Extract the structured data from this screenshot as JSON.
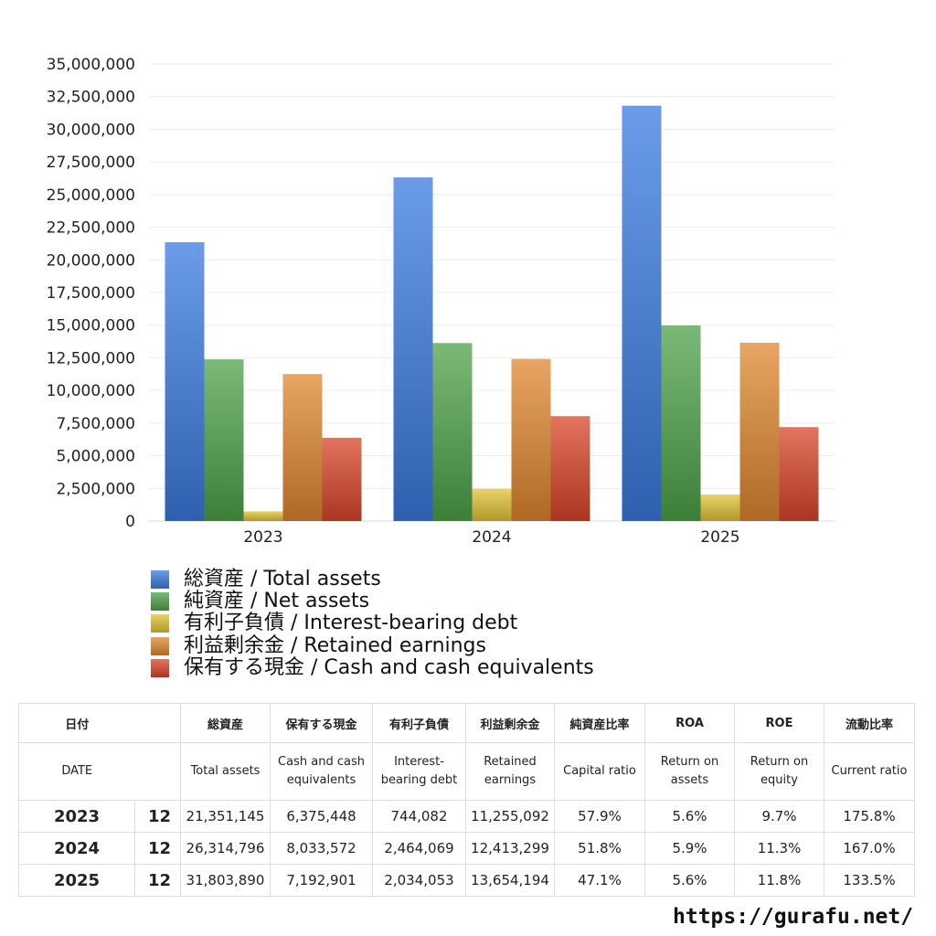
{
  "chart_data": {
    "type": "bar",
    "categories": [
      "2023",
      "2024",
      "2025"
    ],
    "series": [
      {
        "name": "総資産 / Total assets",
        "color": "#3b7be0",
        "values": [
          21351145,
          26314796,
          31803890
        ]
      },
      {
        "name": "純資産 / Net assets",
        "color": "#4ea348",
        "values": [
          12380000,
          13630000,
          14980000
        ]
      },
      {
        "name": "有利子負債 / Interest-bearing debt",
        "color": "#e2c336",
        "values": [
          744082,
          2464069,
          2034053
        ]
      },
      {
        "name": "利益剰余金 / Retained earnings",
        "color": "#e0872f",
        "values": [
          11255092,
          12413299,
          13654194
        ]
      },
      {
        "name": "保有する現金 /  Cash and cash equivalents",
        "color": "#d9452a",
        "values": [
          6375448,
          8033572,
          7192901
        ]
      }
    ],
    "ylim": [
      0,
      35000000
    ],
    "yticks": [
      0,
      2500000,
      5000000,
      7500000,
      10000000,
      12500000,
      15000000,
      17500000,
      20000000,
      22500000,
      25000000,
      27500000,
      30000000,
      32500000,
      35000000
    ],
    "ytick_labels": [
      "0",
      "2,500,000",
      "5,000,000",
      "7,500,000",
      "10,000,000",
      "12,500,000",
      "15,000,000",
      "17,500,000",
      "20,000,000",
      "22,500,000",
      "25,000,000",
      "27,500,000",
      "30,000,000",
      "32,500,000",
      "35,000,000"
    ],
    "grid": true,
    "legend": "bottom"
  },
  "table": {
    "headers_ja": [
      "日付",
      "",
      "総資産",
      "保有する現金",
      "有利子負債",
      "利益剰余金",
      "純資産比率",
      "ROA",
      "ROE",
      "流動比率"
    ],
    "headers_en": [
      "DATE",
      "",
      "Total assets",
      "Cash and cash equivalents",
      "Interest-bearing debt",
      "Retained earnings",
      "Capital ratio",
      "Return on assets",
      "Return on equity",
      "Current ratio"
    ],
    "rows": [
      [
        "2023",
        "12",
        "21,351,145",
        "6,375,448",
        "744,082",
        "11,255,092",
        "57.9%",
        "5.6%",
        "9.7%",
        "175.8%"
      ],
      [
        "2024",
        "12",
        "26,314,796",
        "8,033,572",
        "2,464,069",
        "12,413,299",
        "51.8%",
        "5.9%",
        "11.3%",
        "167.0%"
      ],
      [
        "2025",
        "12",
        "31,803,890",
        "7,192,901",
        "2,034,053",
        "13,654,194",
        "47.1%",
        "5.6%",
        "11.8%",
        "133.5%"
      ]
    ]
  },
  "site": "https://gurafu.net/"
}
